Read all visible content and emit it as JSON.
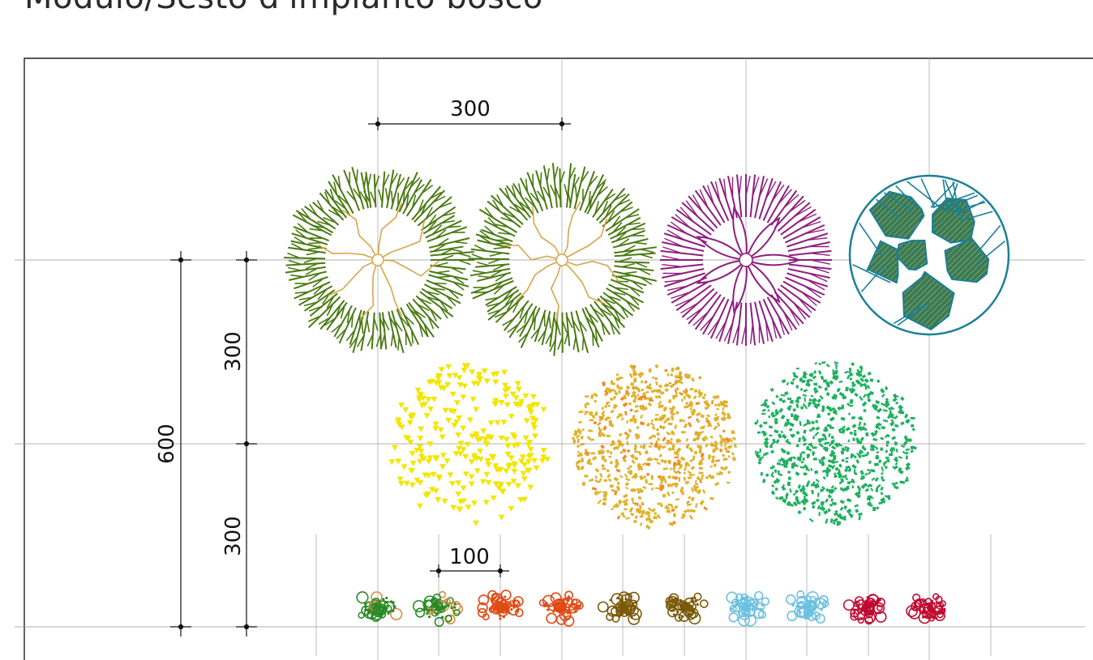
{
  "title": "Modulo/Sesto d'impianto bosco",
  "dimensions": {
    "tree_spacing": "300",
    "row_spacing_upper": "300",
    "row_spacing_lower": "300",
    "total_depth": "600",
    "shrub_spacing": "100"
  },
  "plants": {
    "row1": [
      {
        "name": "green-tree",
        "color": "#4a7a12",
        "accent": "#d6a64a"
      },
      {
        "name": "green-tree",
        "color": "#4a7a12",
        "accent": "#d6a64a"
      },
      {
        "name": "purple-tree",
        "color": "#8e1f7f"
      },
      {
        "name": "teal-tree",
        "color": "#1a7f97",
        "fill": "#3d7a50"
      }
    ],
    "row2": [
      {
        "name": "yellow-tree",
        "color": "#f2e600"
      },
      {
        "name": "golden-tree",
        "color": "#e0b22a",
        "accent": "#f08a2a"
      },
      {
        "name": "light-green-tree",
        "color": "#1fb060"
      }
    ],
    "shrubs": [
      {
        "color": "#2a8a25",
        "accent": "#e08a40"
      },
      {
        "color": "#2a8a25",
        "accent": "#e08a40"
      },
      {
        "color": "#e04a14"
      },
      {
        "color": "#e04a14"
      },
      {
        "color": "#7a5a08"
      },
      {
        "color": "#7a5a08"
      },
      {
        "color": "#6cc0e0"
      },
      {
        "color": "#6cc0e0"
      },
      {
        "color": "#c00a30"
      },
      {
        "color": "#c00a30"
      }
    ]
  }
}
